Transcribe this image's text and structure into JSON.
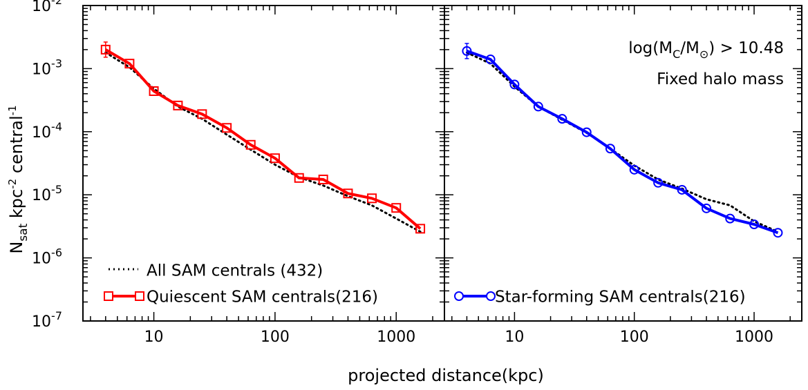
{
  "chart_data": {
    "type": "line",
    "xlabel": "projected distance(kpc)",
    "ylabel": {
      "main": "N",
      "sub": "sat",
      "rest_a": " kpc",
      "sup_a": "-2",
      "rest_b": " central",
      "sup_b": "-1"
    },
    "xscale": "log",
    "yscale": "log",
    "xlim": [
      2.6,
      2500
    ],
    "ylim": [
      1e-07,
      0.01
    ],
    "xticks": [
      {
        "value": 10,
        "label": "10"
      },
      {
        "value": 100,
        "label": "100"
      },
      {
        "value": 1000,
        "label": "1000"
      }
    ],
    "yticks": [
      {
        "value": 1e-07,
        "base": "10",
        "exp": "-7"
      },
      {
        "value": 1e-06,
        "base": "10",
        "exp": "-6"
      },
      {
        "value": 1e-05,
        "base": "10",
        "exp": "-5"
      },
      {
        "value": 0.0001,
        "base": "10",
        "exp": "-4"
      },
      {
        "value": 0.001,
        "base": "10",
        "exp": "-3"
      },
      {
        "value": 0.01,
        "base": "10",
        "exp": "-2"
      }
    ],
    "panels": [
      {
        "id": "left",
        "series": [
          {
            "name": "All SAM centrals (432)",
            "style": "dotted",
            "color": "#000000",
            "x": [
              4,
              6.3,
              10,
              15.8,
              25,
              40,
              63,
              100,
              158,
              250,
              400,
              630,
              1000,
              1580
            ],
            "y": [
              0.0018,
              0.00105,
              0.00048,
              0.00025,
              0.00016,
              9e-05,
              5.2e-05,
              3e-05,
              1.9e-05,
              1.4e-05,
              9.5e-06,
              6.8e-06,
              4.2e-06,
              2.6e-06
            ]
          },
          {
            "name": "Quiescent SAM centrals(216)",
            "style": "solid",
            "marker": "square",
            "color": "#ff0000",
            "x": [
              4,
              6.3,
              10,
              15.8,
              25,
              40,
              63,
              100,
              158,
              250,
              400,
              630,
              1000,
              1580
            ],
            "y": [
              0.002,
              0.0012,
              0.00044,
              0.00026,
              0.00019,
              0.000115,
              6.2e-05,
              3.8e-05,
              1.85e-05,
              1.75e-05,
              1.05e-05,
              8.8e-06,
              6.2e-06,
              2.9e-06
            ]
          }
        ]
      },
      {
        "id": "right",
        "annotation_line1": {
          "pre": "log(M",
          "sub1": "C",
          "mid": "/M",
          "sub2": "⊙",
          "post": ") > 10.48"
        },
        "annotation_line2": "Fixed halo mass",
        "series": [
          {
            "name": "All SAM centrals (432)",
            "style": "dotted",
            "color": "#000000",
            "x": [
              4,
              6.3,
              10,
              15.8,
              25,
              40,
              63,
              100,
              158,
              250,
              400,
              630,
              1000,
              1580
            ],
            "y": [
              0.0018,
              0.0012,
              0.00052,
              0.00025,
              0.000155,
              9.6e-05,
              5.4e-05,
              2.9e-05,
              1.75e-05,
              1.25e-05,
              8.5e-06,
              6.8e-06,
              3.8e-06,
              2.6e-06
            ]
          },
          {
            "name": "Star-forming SAM centrals(216)",
            "style": "solid",
            "marker": "circle",
            "color": "#0000ff",
            "x": [
              4,
              6.3,
              10,
              15.8,
              25,
              40,
              63,
              100,
              158,
              250,
              400,
              630,
              1000,
              1580
            ],
            "y": [
              0.0019,
              0.0014,
              0.00056,
              0.00025,
              0.00016,
              9.8e-05,
              5.4e-05,
              2.5e-05,
              1.55e-05,
              1.2e-05,
              6.1e-06,
              4.2e-06,
              3.4e-06,
              2.5e-06
            ]
          }
        ]
      }
    ],
    "legend": {
      "left": {
        "dotted_label": "All SAM centrals (432)",
        "marker_label": "Quiescent SAM centrals(216)"
      },
      "right": {
        "marker_label": "Star-forming SAM centrals(216)"
      }
    }
  }
}
